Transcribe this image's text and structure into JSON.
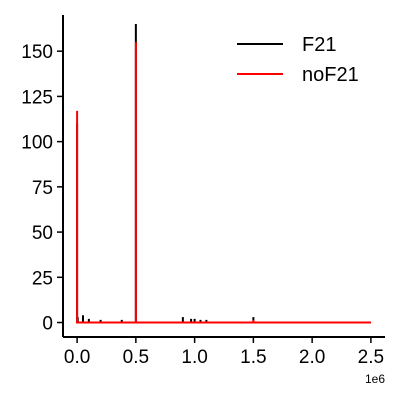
{
  "chart_data": {
    "type": "line",
    "title": "",
    "xlabel": "",
    "ylabel": "",
    "x_offset_label": "1e6",
    "xlim": [
      -0.12,
      2.62
    ],
    "ylim": [
      -8,
      170
    ],
    "x_ticks": [
      0.0,
      0.5,
      1.0,
      1.5,
      2.0,
      2.5
    ],
    "x_tick_labels": [
      "0.0",
      "0.5",
      "1.0",
      "1.5",
      "2.0",
      "2.5"
    ],
    "y_ticks": [
      0,
      25,
      50,
      75,
      100,
      125,
      150
    ],
    "y_tick_labels": [
      "0",
      "25",
      "50",
      "75",
      "100",
      "125",
      "150"
    ],
    "grid": false,
    "legend_position": "top-right",
    "series": [
      {
        "name": "F21",
        "color": "#000000",
        "spikes": [
          {
            "x": 0.0,
            "y": 110
          },
          {
            "x": 0.005,
            "y": 3
          },
          {
            "x": 0.05,
            "y": 4
          },
          {
            "x": 0.1,
            "y": 2
          },
          {
            "x": 0.2,
            "y": 1.5
          },
          {
            "x": 0.38,
            "y": 1.5
          },
          {
            "x": 0.5,
            "y": 165
          },
          {
            "x": 0.9,
            "y": 3
          },
          {
            "x": 0.97,
            "y": 2
          },
          {
            "x": 1.0,
            "y": 2
          },
          {
            "x": 1.05,
            "y": 1.5
          },
          {
            "x": 1.1,
            "y": 1.5
          },
          {
            "x": 1.5,
            "y": 3
          }
        ],
        "x_end": 2.5
      },
      {
        "name": "noF21",
        "color": "#ff0000",
        "spikes": [
          {
            "x": 0.0,
            "y": 117
          },
          {
            "x": 0.5,
            "y": 155
          },
          {
            "x": 1.5,
            "y": 1.5
          }
        ],
        "x_end": 2.5
      }
    ]
  }
}
